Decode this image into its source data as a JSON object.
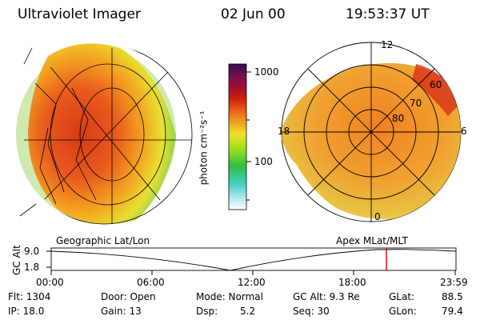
{
  "header": {
    "instrument": "Ultraviolet Imager",
    "date": "02 Jun 00",
    "time": "19:53:37 UT"
  },
  "colorbar": {
    "unit_label": "photon cm⁻²s⁻¹",
    "ticks": [
      "1000",
      "100"
    ]
  },
  "left_panel": {
    "caption": "Geographic Lat/Lon"
  },
  "right_panel": {
    "caption": "Apex MLat/MLT",
    "mlt_labels": {
      "top": "12",
      "left": "18",
      "right": "6",
      "bottom": "0"
    },
    "lat_labels": [
      "60",
      "70",
      "80"
    ]
  },
  "timeline": {
    "y_title": "GC Alt",
    "y_ticks": [
      "9.0",
      "1.8"
    ],
    "x_ticks": [
      "00:00",
      "06:00",
      "12:00",
      "18:00",
      "23:59"
    ],
    "cursor_color": "#e00000"
  },
  "footer": {
    "flt": "Flt: 1304",
    "ip": "IP: 18.0",
    "door": "Door: Open",
    "gain": "Gain: 13",
    "mode": "Mode: Normal",
    "dsp_label": "Dsp:",
    "dsp_value": "5.2",
    "gcalt": "GC Alt: 9.3 Re",
    "seq": "Seq: 30",
    "glat_label": "GLat:",
    "glat_value": "88.5",
    "glon_label": "GLon:",
    "glon_value": "79.4"
  }
}
